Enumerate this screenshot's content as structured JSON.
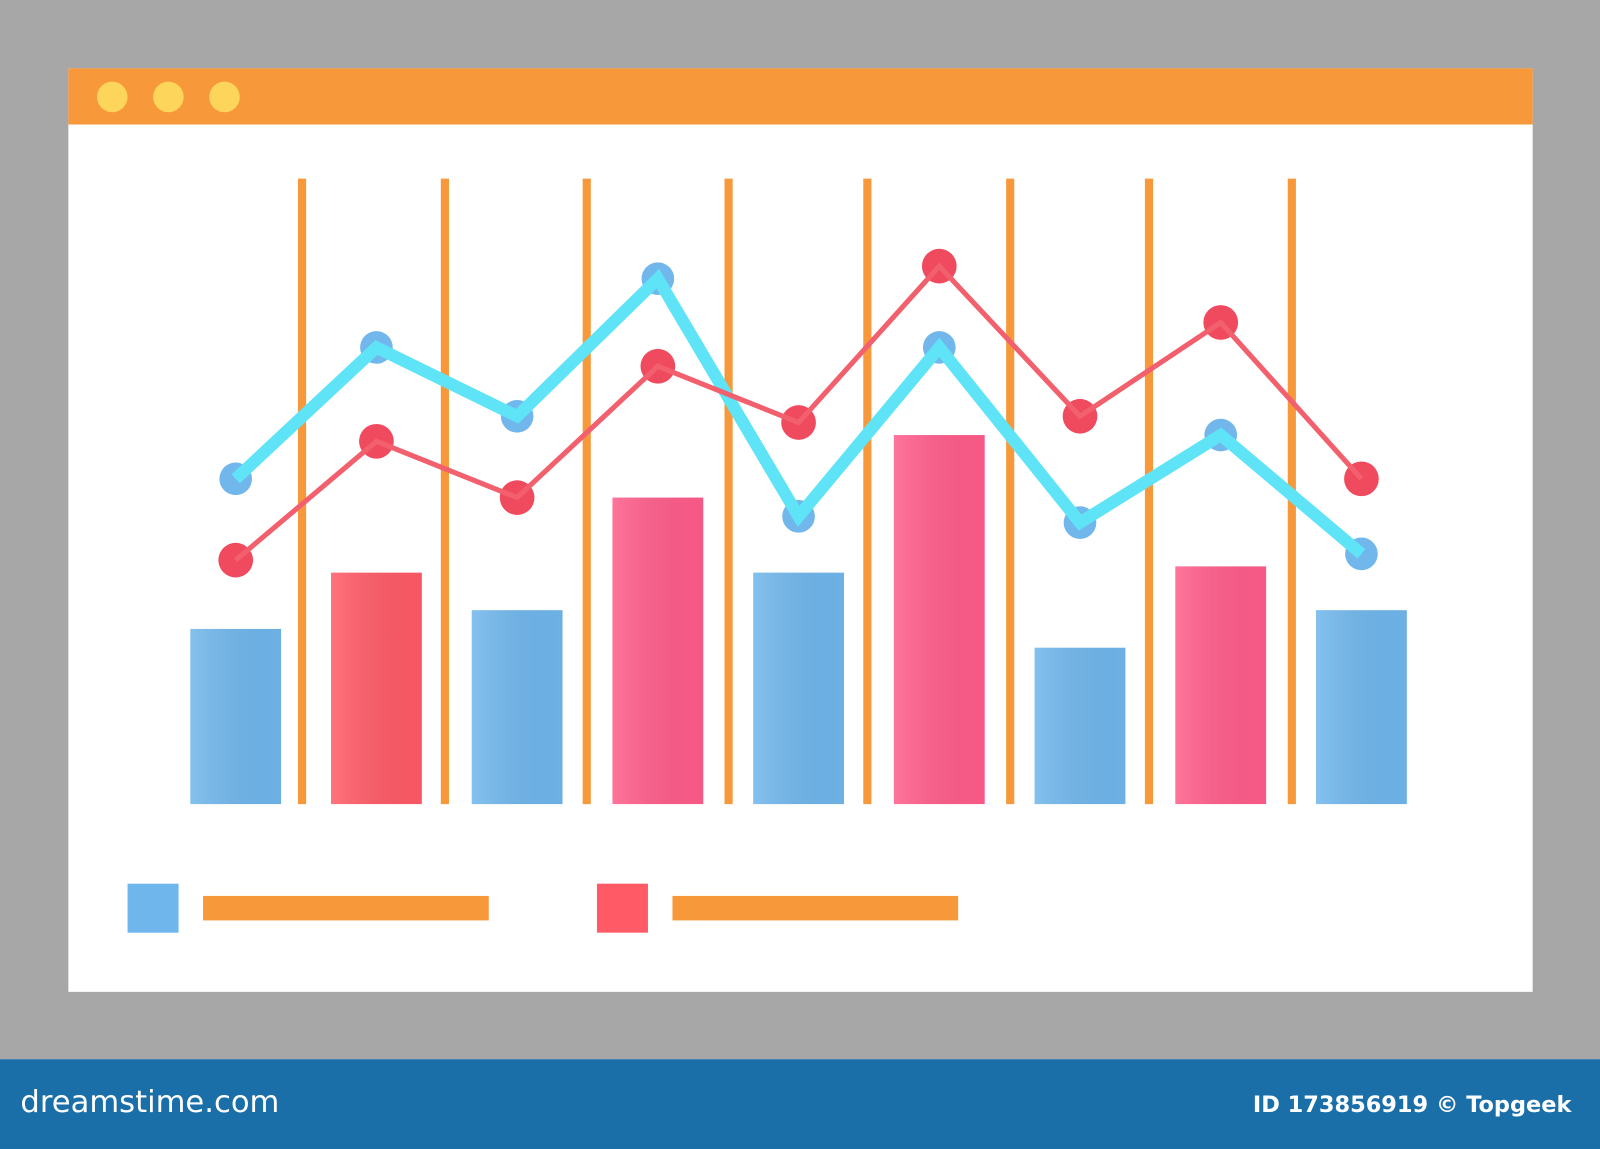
{
  "chart_data": {
    "type": "bar",
    "categories": [
      null,
      null,
      null,
      null,
      null,
      null,
      null,
      null,
      null
    ],
    "values": [
      28,
      37,
      31,
      49,
      37,
      59,
      25,
      38,
      31
    ],
    "colors": [
      "#6fb6ec",
      "#ff5a66",
      "#6fb6ec",
      "#ff5c8a",
      "#6fb6ec",
      "#ff5c8a",
      "#6fb6ec",
      "#ff5c8a",
      "#6fb6ec"
    ],
    "line_series": [
      {
        "color": "#5fe3f7",
        "values": [
          52,
          73,
          62,
          84,
          46,
          73,
          45,
          59,
          40
        ]
      },
      {
        "color": "#f2606e",
        "values": [
          39,
          58,
          49,
          70,
          61,
          86,
          62,
          77,
          52
        ]
      }
    ],
    "legend_colors": [
      "#6fb6ec",
      "#ff5a66"
    ],
    "ylim": [
      0,
      100
    ]
  },
  "footer": {
    "brand": "dreamstime.com",
    "credit": "ID 173856919 © Topgeek"
  }
}
